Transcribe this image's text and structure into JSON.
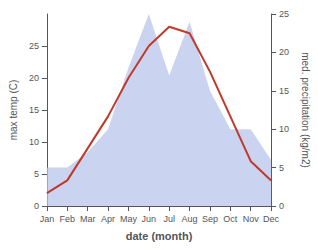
{
  "chart_data": {
    "type": "line",
    "xlabel": "date (month)",
    "ylabel": "max temp (C)",
    "y2label": "med. precipitation (kg/m2)",
    "categories": [
      "Jan",
      "Feb",
      "Mar",
      "Apr",
      "May",
      "Jun",
      "Jul",
      "Aug",
      "Sep",
      "Oct",
      "Nov",
      "Dec"
    ],
    "series": [
      {
        "type": "area",
        "color": "#b8c4ea",
        "axis": "y2",
        "values": [
          5,
          5,
          7,
          10,
          18,
          25,
          17,
          24,
          15,
          10,
          10,
          6
        ]
      },
      {
        "type": "line",
        "color": "#c0392b",
        "values": [
          2,
          4,
          9,
          14,
          20,
          25,
          28,
          27,
          21,
          14,
          7,
          4
        ]
      }
    ],
    "ylim": [
      0,
      30
    ],
    "yticks": [
      0,
      5,
      10,
      15,
      20,
      25
    ],
    "y2lim": [
      0,
      25
    ],
    "y2ticks": [
      0,
      5,
      10,
      15,
      20,
      25
    ],
    "grid": false
  }
}
